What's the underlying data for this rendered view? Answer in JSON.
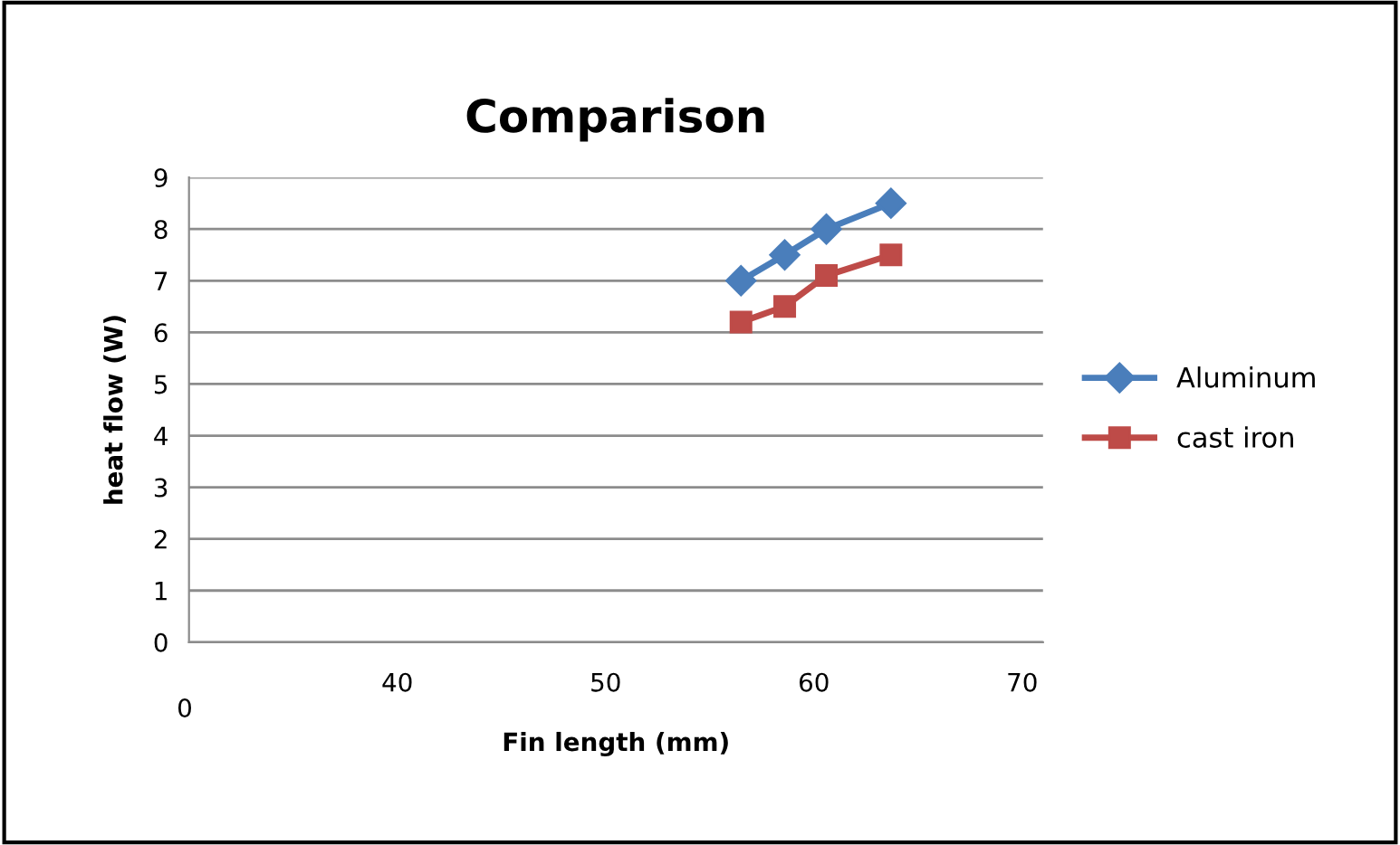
{
  "chart_data": {
    "type": "line",
    "title": "Comparison",
    "xlabel": "Fin length (mm)",
    "ylabel": "heat flow (W)",
    "x": [
      56.5,
      58.6,
      60.6,
      63.7
    ],
    "series": [
      {
        "name": "Aluminum",
        "color": "#4a7ebb",
        "marker": "diamond",
        "values": [
          7,
          7.5,
          8,
          8.5
        ]
      },
      {
        "name": "cast iron",
        "color": "#be4b48",
        "marker": "square",
        "values": [
          6.2,
          6.5,
          7.1,
          7.5
        ]
      }
    ],
    "xlim": [
      30,
      71
    ],
    "xticks": [
      40,
      50,
      60,
      70
    ],
    "annotations": [
      "0"
    ],
    "ylim": [
      0,
      9
    ],
    "yticks": [
      0,
      1,
      2,
      3,
      4,
      5,
      6,
      7,
      8,
      9
    ],
    "grid": "y",
    "legend": "right",
    "line_style": "solid"
  }
}
